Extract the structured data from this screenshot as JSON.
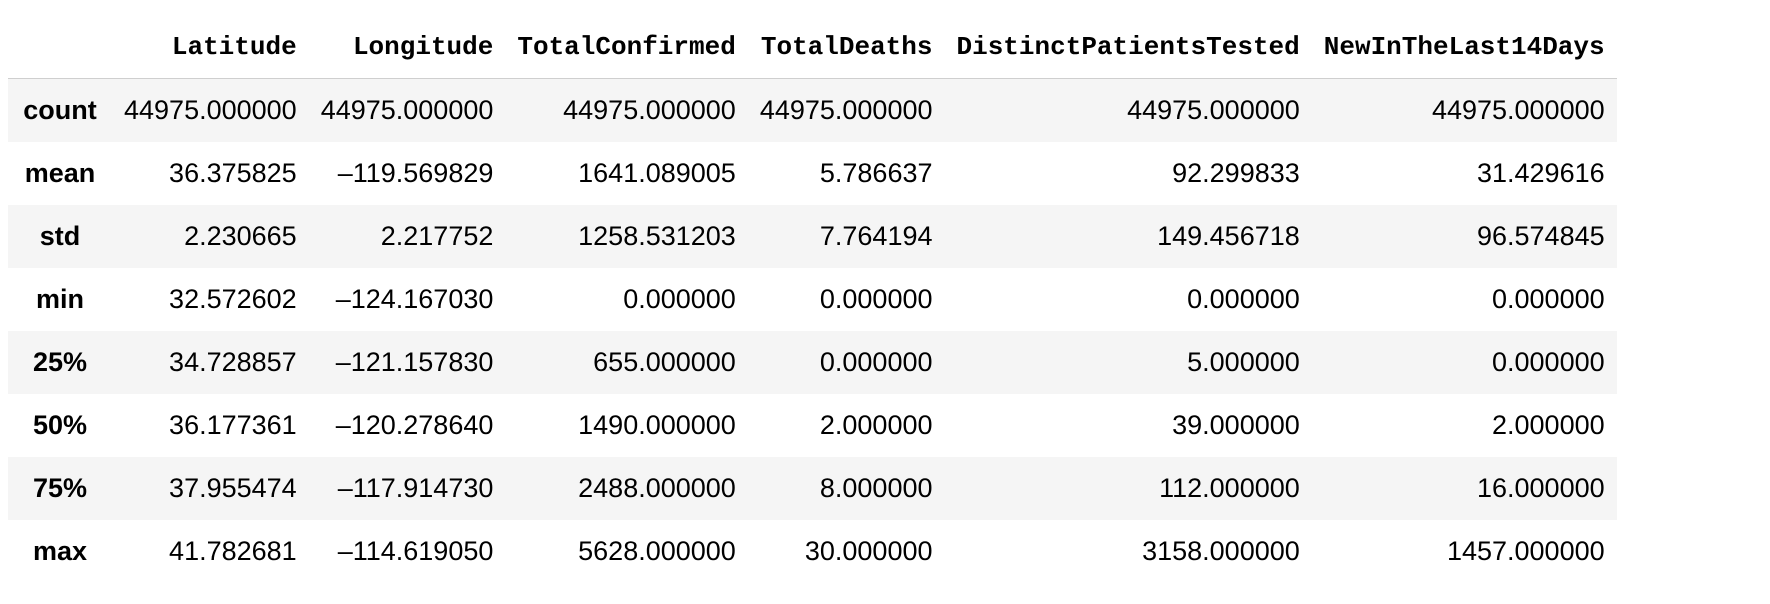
{
  "table": {
    "columns": [
      "",
      "Latitude",
      "Longitude",
      "TotalConfirmed",
      "TotalDeaths",
      "DistinctPatientsTested",
      "NewInTheLast14Days"
    ],
    "rows": [
      {
        "index": "count",
        "cells": [
          "44975.000000",
          "44975.000000",
          "44975.000000",
          "44975.000000",
          "44975.000000",
          "44975.000000"
        ]
      },
      {
        "index": "mean",
        "cells": [
          "36.375825",
          "–119.569829",
          "1641.089005",
          "5.786637",
          "92.299833",
          "31.429616"
        ]
      },
      {
        "index": "std",
        "cells": [
          "2.230665",
          "2.217752",
          "1258.531203",
          "7.764194",
          "149.456718",
          "96.574845"
        ]
      },
      {
        "index": "min",
        "cells": [
          "32.572602",
          "–124.167030",
          "0.000000",
          "0.000000",
          "0.000000",
          "0.000000"
        ]
      },
      {
        "index": "25%",
        "cells": [
          "34.728857",
          "–121.157830",
          "655.000000",
          "0.000000",
          "5.000000",
          "0.000000"
        ]
      },
      {
        "index": "50%",
        "cells": [
          "36.177361",
          "–120.278640",
          "1490.000000",
          "2.000000",
          "39.000000",
          "2.000000"
        ]
      },
      {
        "index": "75%",
        "cells": [
          "37.955474",
          "–117.914730",
          "2488.000000",
          "8.000000",
          "112.000000",
          "16.000000"
        ]
      },
      {
        "index": "max",
        "cells": [
          "41.782681",
          "–114.619050",
          "5628.000000",
          "30.000000",
          "3158.000000",
          "1457.000000"
        ]
      }
    ]
  }
}
